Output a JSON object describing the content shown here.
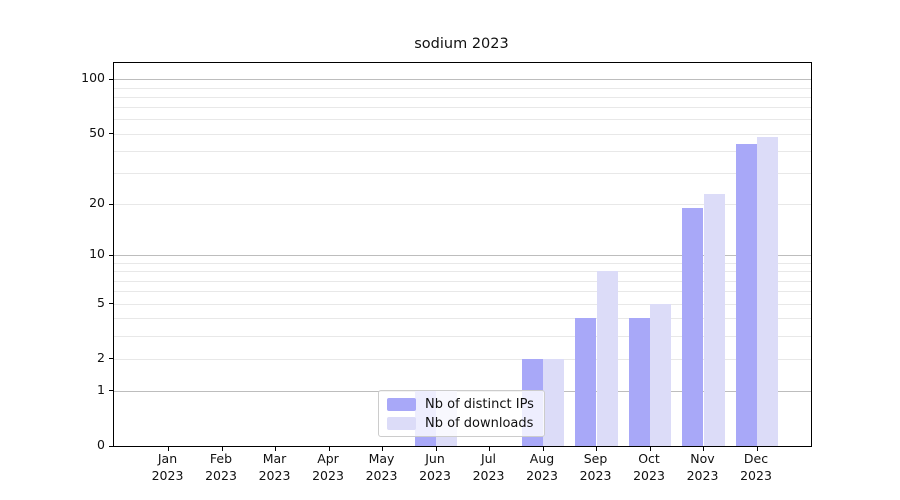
{
  "title": "sodium 2023",
  "legend": {
    "items": [
      {
        "label": "Nb of distinct IPs",
        "color": "#a8a8f8"
      },
      {
        "label": "Nb of downloads",
        "color": "#dcdcf8"
      }
    ],
    "position": "bottom-center-inside"
  },
  "colors": {
    "distinct_ips_bar": "#a8a8f8",
    "downloads_bar": "#dcdcf8",
    "major_gridline": "#bdbdbd",
    "minor_gridline": "#e8e8e8",
    "axis_spine": "#000000",
    "background": "#ffffff"
  },
  "chart_data": {
    "type": "bar",
    "title": "sodium 2023",
    "categories": [
      "Jan",
      "Feb",
      "Mar",
      "Apr",
      "May",
      "Jun",
      "Jul",
      "Aug",
      "Sep",
      "Oct",
      "Nov",
      "Dec"
    ],
    "category_year": "2023",
    "series": [
      {
        "name": "Nb of distinct IPs",
        "color": "#a8a8f8",
        "values": [
          0,
          0,
          0,
          0,
          0,
          1,
          0,
          2,
          4,
          4,
          19,
          44
        ]
      },
      {
        "name": "Nb of downloads",
        "color": "#dcdcf8",
        "values": [
          0,
          0,
          0,
          0,
          0,
          1,
          0,
          2,
          8,
          5,
          23,
          48
        ]
      }
    ],
    "xlabel": "",
    "ylabel": "",
    "y_scale": "log10(1+value)",
    "y_ticks": [
      0,
      1,
      2,
      5,
      10,
      20,
      50,
      100
    ],
    "y_axis_top_value": 123,
    "major_gridlines": [
      1,
      10,
      100
    ],
    "minor_gridlines": [
      2,
      3,
      4,
      5,
      6,
      7,
      8,
      9,
      20,
      30,
      40,
      50,
      60,
      70,
      80,
      90
    ],
    "grid": "horizontal-only",
    "legend_position": "lower center inside axes"
  }
}
